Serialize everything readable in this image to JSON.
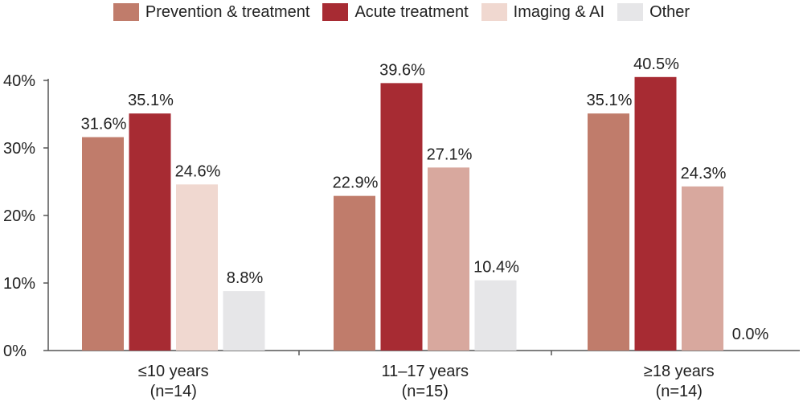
{
  "chart_data": {
    "type": "bar",
    "title": "",
    "xlabel": "",
    "ylabel": "",
    "ylim": [
      0,
      40
    ],
    "y_ticks": [
      "0%",
      "10%",
      "20%",
      "30%",
      "40%"
    ],
    "y_tick_values": [
      0,
      10,
      20,
      30,
      40
    ],
    "grid": false,
    "legend_position": "top-center",
    "categories": [
      "≤10 years",
      "11–17 years",
      "≥18 years"
    ],
    "category_sublabels": [
      "(n=14)",
      "(n=15)",
      "(n=14)"
    ],
    "series": [
      {
        "name": "Prevention & treatment",
        "color": "#c07c6b",
        "values": [
          31.6,
          22.9,
          35.1
        ],
        "labels": [
          "31.6%",
          "22.9%",
          "35.1%"
        ]
      },
      {
        "name": "Acute treatment",
        "color": "#a72b33",
        "values": [
          35.1,
          39.6,
          40.5
        ],
        "labels": [
          "35.1%",
          "39.6%",
          "40.5%"
        ]
      },
      {
        "name": "Imaging & AI",
        "color": "#f0d8d0",
        "values": [
          24.6,
          27.1,
          24.3
        ],
        "labels": [
          "24.6%",
          "27.1%",
          "24.3%"
        ],
        "bar_colors": [
          "#f0d8d0",
          "#d8a89e",
          "#d8a89e"
        ]
      },
      {
        "name": "Other",
        "color": "#e6e6e8",
        "values": [
          8.8,
          10.4,
          0.0
        ],
        "labels": [
          "8.8%",
          "10.4%",
          "0.0%"
        ]
      }
    ]
  }
}
